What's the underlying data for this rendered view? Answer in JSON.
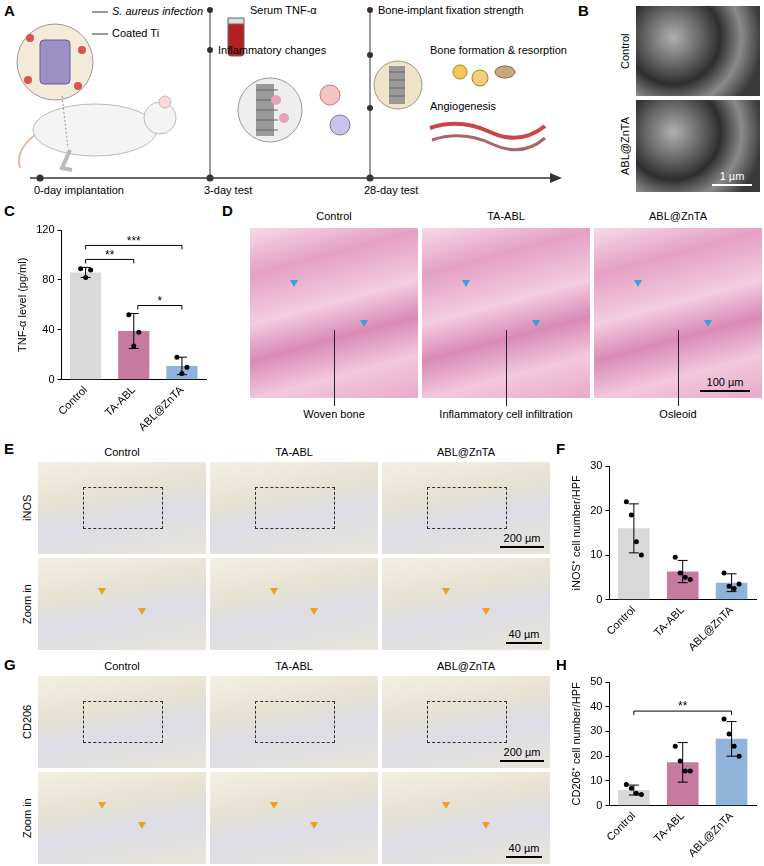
{
  "figure": {
    "A": {
      "letter": "A",
      "infection": "S. aureus infection",
      "implant": "Coated Ti",
      "day0": "0-day implantation",
      "day3": "3-day test",
      "day28": "28-day test",
      "day3_items": [
        "Serum TNF-α",
        "Inflammatory changes"
      ],
      "day28_items": [
        "Bone-implant fixation strength",
        "Bone formation & resorption",
        "Angiogenesis"
      ]
    },
    "B": {
      "letter": "B",
      "rows": [
        "Control",
        "ABL@ZnTA"
      ],
      "scale_bar": "1 µm"
    },
    "D": {
      "letter": "D",
      "columns": [
        "Control",
        "TA-ABL",
        "ABL@ZnTA"
      ],
      "annotations": [
        "Woven bone",
        "Inflammatory cell infiltration",
        "Osleoid"
      ],
      "scale_bar": "100 µm"
    },
    "E": {
      "letter": "E",
      "stain": "iNOS",
      "zoom": "Zoom in",
      "columns": [
        "Control",
        "TA-ABL",
        "ABL@ZnTA"
      ],
      "scale_bar": "200 µm",
      "zoom_scale_bar": "40 µm"
    },
    "G": {
      "letter": "G",
      "stain": "CD206",
      "zoom": "Zoom in",
      "columns": [
        "Control",
        "TA-ABL",
        "ABL@ZnTA"
      ],
      "scale_bar": "200 µm",
      "zoom_scale_bar": "40 µm"
    }
  },
  "chart_data": [
    {
      "panel": "C",
      "type": "bar",
      "categories": [
        "Control",
        "TA-ABL",
        "ABL@ZnTA"
      ],
      "values": [
        86,
        39,
        11
      ],
      "error": [
        4,
        14,
        7
      ],
      "points": [
        [
          89,
          82,
          88
        ],
        [
          52,
          27,
          38
        ],
        [
          18,
          5,
          10
        ]
      ],
      "colors": [
        "#d9d9d9",
        "#c77aa0",
        "#8fb3d9"
      ],
      "y_label": "TNF-α level (pg/ml)",
      "ylim": [
        0,
        120
      ],
      "yticks": [
        0,
        40,
        80,
        120
      ],
      "grid": false,
      "significance": [
        {
          "from": "Control",
          "to": "TA-ABL",
          "label": "**"
        },
        {
          "from": "TA-ABL",
          "to": "ABL@ZnTA",
          "label": "*"
        },
        {
          "from": "Control",
          "to": "ABL@ZnTA",
          "label": "***"
        }
      ]
    },
    {
      "panel": "F",
      "type": "bar",
      "categories": [
        "Control",
        "TA-ABL",
        "ABL@ZnTA"
      ],
      "values": [
        16,
        6.3,
        3.8
      ],
      "error": [
        5.5,
        2.5,
        2
      ],
      "points": [
        [
          22,
          19,
          13,
          10
        ],
        [
          9.5,
          6,
          5,
          4.5
        ],
        [
          6,
          3,
          2.5,
          3.5
        ]
      ],
      "colors": [
        "#d9d9d9",
        "#c77aa0",
        "#8fb3d9"
      ],
      "y_label": "iNOS⁺ cell number/HPF",
      "ylim": [
        0,
        30
      ],
      "yticks": [
        0,
        10,
        20,
        30
      ],
      "grid": false,
      "significance": []
    },
    {
      "panel": "H",
      "type": "bar",
      "categories": [
        "Control",
        "TA-ABL",
        "ABL@ZnTA"
      ],
      "values": [
        6.3,
        17.5,
        27
      ],
      "error": [
        2,
        8,
        7
      ],
      "points": [
        [
          8.5,
          7,
          5,
          4.5
        ],
        [
          24,
          18,
          14,
          14
        ],
        [
          35,
          29,
          24,
          20
        ]
      ],
      "colors": [
        "#d9d9d9",
        "#c77aa0",
        "#8fb3d9"
      ],
      "y_label": "CD206⁺ cell number/HPF",
      "ylim": [
        0,
        50
      ],
      "yticks": [
        0,
        10,
        20,
        30,
        40,
        50
      ],
      "grid": false,
      "significance": [
        {
          "from": "Control",
          "to": "ABL@ZnTA",
          "label": "**"
        }
      ]
    }
  ]
}
